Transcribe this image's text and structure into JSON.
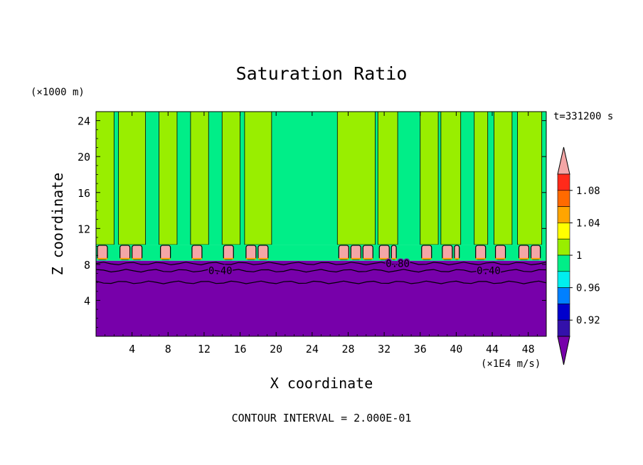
{
  "chart_data": {
    "type": "heatmap",
    "title": "Saturation Ratio",
    "xlabel": "X coordinate",
    "ylabel": "Z coordinate",
    "x_units": "(×1E4 m/s)",
    "y_units": "(×1000 m)",
    "time_label": "t=331200 s",
    "footer": "CONTOUR INTERVAL = 2.000E-01",
    "xlim": [
      0,
      50
    ],
    "ylim": [
      0,
      25
    ],
    "x_ticks": [
      "4",
      "8",
      "12",
      "16",
      "20",
      "24",
      "28",
      "32",
      "36",
      "40",
      "44",
      "48"
    ],
    "y_ticks": [
      "4",
      "8",
      "12",
      "16",
      "20",
      "24"
    ],
    "contour_labels": [
      "0.40",
      "0.80",
      "0.40"
    ],
    "colorbar": {
      "levels": [
        "1.08",
        "1.04",
        "1",
        "0.96",
        "0.92"
      ],
      "colors": [
        "#f4a6a6",
        "#ff2a1a",
        "#ff6a00",
        "#ffa500",
        "#ffff00",
        "#99ee00",
        "#00ee88",
        "#00eeee",
        "#0080ff",
        "#0000cc",
        "#3311aa",
        "#7700aa"
      ]
    },
    "layers": {
      "dry": {
        "z_top": 8.4,
        "color": "#7700aa"
      },
      "moist_band": {
        "z_bottom": 8.4,
        "z_top": 10.2,
        "color": "#f4a6a6"
      },
      "upper_background": {
        "color": "#00ee88"
      },
      "supersaturated_columns": {
        "color": "#99ee00",
        "x_ranges": [
          [
            0,
            2
          ],
          [
            2.5,
            5.5
          ],
          [
            7,
            9
          ],
          [
            10.5,
            12.5
          ],
          [
            14,
            16
          ],
          [
            16.5,
            19.5
          ],
          [
            26.8,
            31
          ],
          [
            31.3,
            33.5
          ],
          [
            36,
            38
          ],
          [
            38.3,
            40.5
          ],
          [
            42,
            43.5
          ],
          [
            44.2,
            46.2
          ],
          [
            46.8,
            49.5
          ]
        ]
      }
    }
  }
}
